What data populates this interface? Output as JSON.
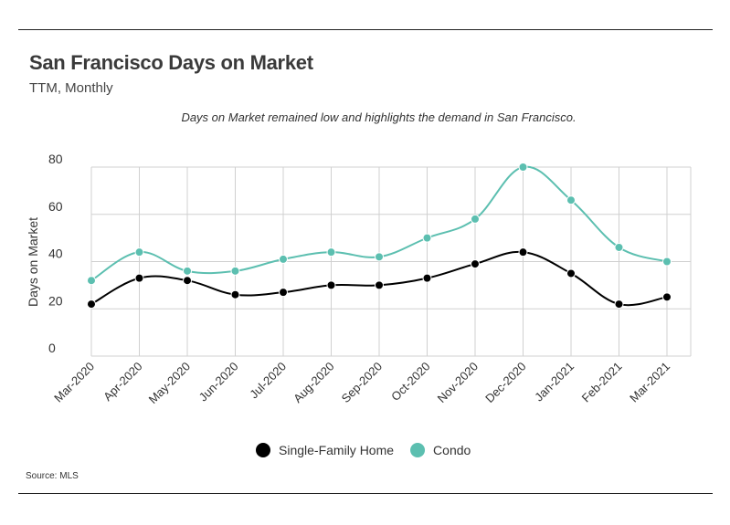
{
  "chart_data": {
    "type": "line",
    "title": "San Francisco Days on Market",
    "subtitle": "TTM, Monthly",
    "annotation": "Days on Market remained low and highlights the demand in San Francisco.",
    "source": "Source:  MLS",
    "ylabel": "Days on Market",
    "xlabel": "",
    "ylim": [
      0,
      80
    ],
    "yticks": [
      0,
      20,
      40,
      60,
      80
    ],
    "grid": true,
    "legend_position": "bottom-center",
    "categories": [
      "Mar-2020",
      "Apr-2020",
      "May-2020",
      "Jun-2020",
      "Jul-2020",
      "Aug-2020",
      "Sep-2020",
      "Oct-2020",
      "Nov-2020",
      "Dec-2020",
      "Jan-2021",
      "Feb-2021",
      "Mar-2021"
    ],
    "series": [
      {
        "name": "Single-Family Home",
        "color": "#000000",
        "values": [
          22,
          33,
          32,
          26,
          27,
          30,
          30,
          33,
          39,
          44,
          35,
          22,
          25
        ]
      },
      {
        "name": "Condo",
        "color": "#5cbfb0",
        "values": [
          32,
          44,
          36,
          36,
          41,
          44,
          42,
          50,
          58,
          80,
          66,
          46,
          40
        ]
      }
    ]
  }
}
